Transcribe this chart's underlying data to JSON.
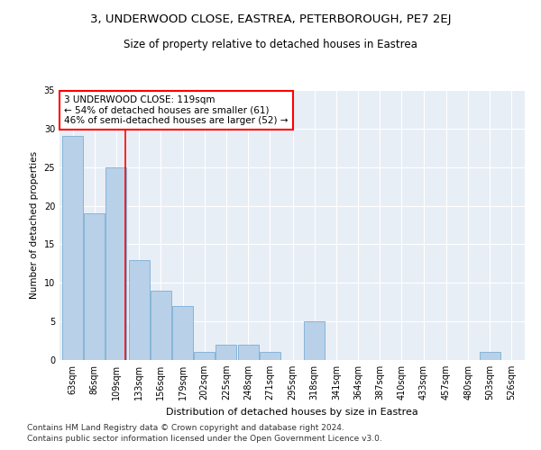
{
  "title1": "3, UNDERWOOD CLOSE, EASTREA, PETERBOROUGH, PE7 2EJ",
  "title2": "Size of property relative to detached houses in Eastrea",
  "xlabel": "Distribution of detached houses by size in Eastrea",
  "ylabel": "Number of detached properties",
  "bins": [
    63,
    86,
    109,
    133,
    156,
    179,
    202,
    225,
    248,
    271,
    295,
    318,
    341,
    364,
    387,
    410,
    433,
    457,
    480,
    503,
    526
  ],
  "values": [
    29,
    19,
    25,
    13,
    9,
    7,
    1,
    2,
    2,
    1,
    0,
    5,
    0,
    0,
    0,
    0,
    0,
    0,
    0,
    1,
    0
  ],
  "bar_color": "#b8d0e8",
  "bar_edge_color": "#7bafd4",
  "bar_edge_width": 0.6,
  "red_line_x": 119,
  "annotation_text": "3 UNDERWOOD CLOSE: 119sqm\n← 54% of detached houses are smaller (61)\n46% of semi-detached houses are larger (52) →",
  "annotation_box_color": "white",
  "annotation_border_color": "red",
  "ylim": [
    0,
    35
  ],
  "yticks": [
    0,
    5,
    10,
    15,
    20,
    25,
    30,
    35
  ],
  "background_color": "#e8eef6",
  "grid_color": "white",
  "footer_line1": "Contains HM Land Registry data © Crown copyright and database right 2024.",
  "footer_line2": "Contains public sector information licensed under the Open Government Licence v3.0.",
  "title1_fontsize": 9.5,
  "title2_fontsize": 8.5,
  "xlabel_fontsize": 8,
  "ylabel_fontsize": 7.5,
  "tick_fontsize": 7,
  "annot_fontsize": 7.5,
  "footer_fontsize": 6.5
}
